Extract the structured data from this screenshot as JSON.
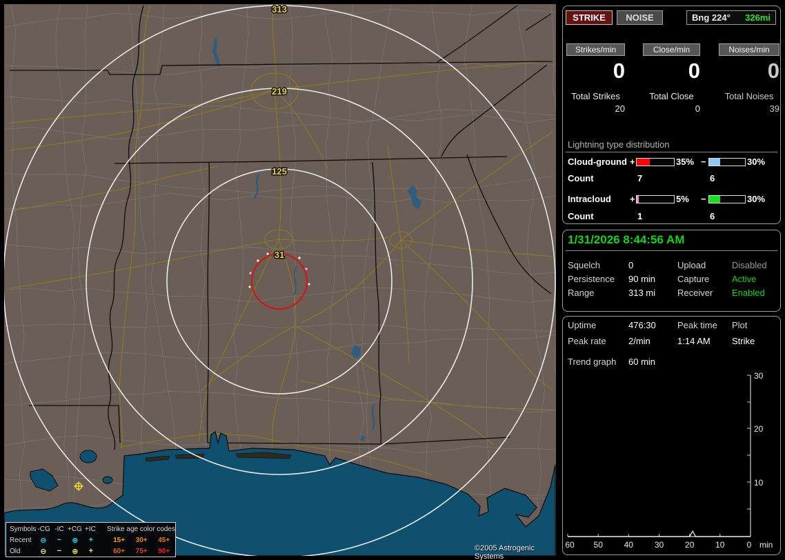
{
  "app": {
    "copyright": "©2005 Astrogenic Systems"
  },
  "toolbar": {
    "strike_label": "STRIKE",
    "noise_label": "NOISE",
    "bearing_label": "Bng 224°",
    "bearing_distance": "326mi"
  },
  "counters": {
    "columns": [
      {
        "rate_label": "Strikes/min",
        "rate_value": "0",
        "total_label": "Total Strikes",
        "total_value": "20"
      },
      {
        "rate_label": "Close/min",
        "rate_value": "0",
        "total_label": "Total Close",
        "total_value": "0"
      },
      {
        "rate_label": "Noises/min",
        "rate_value": "0",
        "total_label": "Total Noises",
        "total_value": "39"
      }
    ]
  },
  "distribution": {
    "title": "Lightning type distribution",
    "plus_sign": "+",
    "minus_sign": "−",
    "count_label": "Count",
    "rows": [
      {
        "label": "Cloud-ground",
        "plus_pct": "35%",
        "plus_fill": 35,
        "plus_color": "#f90606",
        "minus_pct": "30%",
        "minus_fill": 30,
        "minus_color": "#8fc7f2",
        "plus_count": "7",
        "minus_count": "6"
      },
      {
        "label": "Intracloud",
        "plus_pct": "5%",
        "plus_fill": 5,
        "plus_color": "#fb8ccb",
        "minus_pct": "30%",
        "minus_fill": 30,
        "minus_color": "#1ade1a",
        "plus_count": "1",
        "minus_count": "6"
      }
    ]
  },
  "status": {
    "datetime": "1/31/2026 8:44:56 AM",
    "rows": [
      {
        "l1": "Squelch",
        "v1": "0",
        "l2": "Upload",
        "v2": "Disabled",
        "v2_color": "#989898"
      },
      {
        "l1": "Persistence",
        "v1": "90 min",
        "l2": "Capture",
        "v2": "Active",
        "v2_color": "#15d415"
      },
      {
        "l1": "Range",
        "v1": "313 mi",
        "l2": "Receiver",
        "v2": "Enabled",
        "v2_color": "#15d415"
      }
    ]
  },
  "stats": {
    "uptime_label": "Uptime",
    "uptime": "476:30",
    "peak_time_label": "Peak time",
    "plot_label": "Plot",
    "peak_rate_label": "Peak rate",
    "peak_rate": "2/min",
    "peak_time": "1:14 AM",
    "plot_value": "Strike",
    "trend_label": "Trend graph",
    "trend_window": "60 min"
  },
  "chart_data": {
    "type": "line",
    "title": "Trend graph — strikes per minute over last 60 minutes",
    "xlabel": "min",
    "ylabel": "",
    "x_start_minutes_ago": 60,
    "x_end_minutes_ago": 0,
    "values": [
      0,
      0,
      0,
      0,
      0,
      0,
      0,
      0,
      0,
      0,
      0,
      0,
      0,
      0,
      0,
      0,
      0,
      0,
      0,
      0,
      0,
      0,
      0,
      0,
      0,
      0,
      0,
      0,
      0,
      0,
      0,
      0,
      0,
      0,
      0,
      0,
      0,
      0,
      0,
      0,
      0,
      1,
      0,
      0,
      0,
      0,
      0,
      0,
      0,
      0,
      0,
      0,
      0,
      0,
      0,
      0,
      0,
      0,
      0,
      0,
      0
    ],
    "ylim": [
      0,
      30
    ],
    "xticks": [
      "60",
      "50",
      "40",
      "30",
      "20",
      "10",
      "0"
    ],
    "yticks": [
      "30",
      "20",
      "10"
    ],
    "x_unit": "min",
    "y_axis_side": "right",
    "grid": false,
    "line_color": "#ffffff"
  },
  "map": {
    "rings": [
      {
        "label": "313"
      },
      {
        "label": "219"
      },
      {
        "label": "125"
      },
      {
        "label": "31"
      }
    ],
    "ring_color": "#e9ebec",
    "alarm_ring_color": "#d81111",
    "legend": {
      "header": [
        "Symbols",
        "-CG",
        "-IC",
        "+CG",
        "+IC"
      ],
      "age_title": "Strike age color codes",
      "symbols": [
        "⊖",
        "−",
        "⊕",
        "+"
      ],
      "rows": [
        {
          "label": "Recent",
          "symbol_color": "#18e0f8",
          "ages": [
            {
              "t": "15+",
              "c": "#f7a800"
            },
            {
              "t": "30+",
              "c": "#f08c00"
            },
            {
              "t": "45+",
              "c": "#ef7a10"
            }
          ]
        },
        {
          "label": "Old",
          "symbol_color": "#f8f832",
          "ages": [
            {
              "t": "60+",
              "c": "#e86410"
            },
            {
              "t": "75+",
              "c": "#e8401c"
            },
            {
              "t": "90+",
              "c": "#f02015"
            }
          ]
        }
      ]
    }
  }
}
